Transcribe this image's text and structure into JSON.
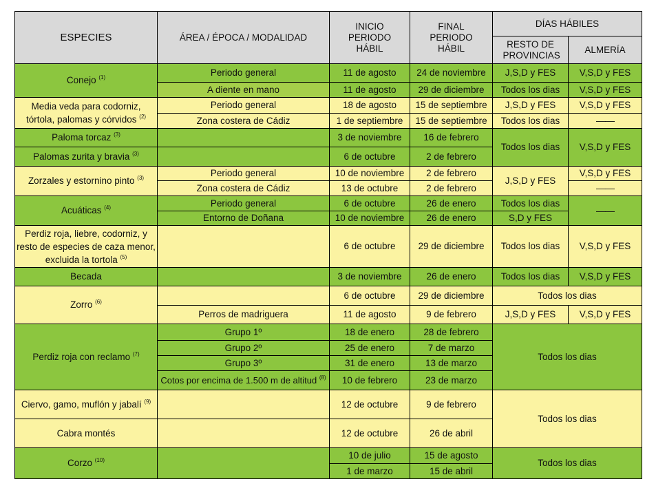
{
  "header": {
    "especies": "ESPECIES",
    "area": "ÁREA / ÉPOCA / MODALIDAD",
    "inicio": "INICIO PERIODO HÁBIL",
    "final": "FINAL PERIODO HÁBIL",
    "dias_habiles": "DÍAS HÁBILES",
    "resto": "RESTO DE PROVINCIAS",
    "almeria": "ALMERÍA"
  },
  "rows": {
    "conejo": {
      "species": "Conejo",
      "note": "(1)",
      "a": {
        "area": "Periodo general",
        "start": "11 de agosto",
        "end": "24 de noviembre",
        "resto": "J,S,D y FES",
        "almeria": "V,S,D y FES"
      },
      "b": {
        "area": "A diente en mano",
        "start": "11 de agosto",
        "end": "29 de diciembre",
        "resto": "Todos los dias",
        "almeria": "V,S,D y FES"
      }
    },
    "mediaveda": {
      "species": "Media veda para codorniz, tórtola, palomas y córvidos",
      "note": "(2)",
      "a": {
        "area": "Periodo general",
        "start": "18 de agosto",
        "end": "15 de septiembre",
        "resto": "J,S,D y FES",
        "almeria": "V,S,D y FES"
      },
      "b": {
        "area": "Zona costera de Cádiz",
        "start": "1 de septiembre",
        "end": "15 de septiembre",
        "resto": "Todos los dias",
        "almeria": "——"
      }
    },
    "torcaz": {
      "species": "Paloma torcaz",
      "note": "(3)",
      "start": "3 de noviembre",
      "end": "16 de febrero"
    },
    "zurita": {
      "species": "Palomas zurita y bravia",
      "note": "(3)",
      "start": "6 de octubre",
      "end": "2 de febrero"
    },
    "palomas_dias": {
      "resto": "Todos los dias",
      "almeria": "V,S,D y FES"
    },
    "zorzales": {
      "species": "Zorzales y estornino pinto",
      "note": "(3)",
      "resto": "J,S,D y FES",
      "a": {
        "area": "Periodo general",
        "start": "10 de noviembre",
        "end": "2 de febrero",
        "almeria": "V,S,D y FES"
      },
      "b": {
        "area": "Zona costera de Cádiz",
        "start": "13 de octubre",
        "end": "2 de febrero",
        "almeria": "——"
      }
    },
    "acuaticas": {
      "species": "Acuáticas",
      "note": "(4)",
      "almeria": "——",
      "a": {
        "area": "Periodo general",
        "start": "6 de octubre",
        "end": "26 de enero",
        "resto": "Todos los dias"
      },
      "b": {
        "area": "Entorno de Doñana",
        "start": "10 de noviembre",
        "end": "26 de enero",
        "resto": "S,D y FES"
      }
    },
    "perdiz": {
      "species": "Perdiz roja, liebre, codorniz, y resto de especies de caza menor, excluida la tortola",
      "note": "(5)",
      "start": "6 de octubre",
      "end": "29 de diciembre",
      "resto": "Todos los dias",
      "almeria": "V,S,D y FES"
    },
    "becada": {
      "species": "Becada",
      "start": "3 de noviembre",
      "end": "26 de enero",
      "resto": "Todos los dias",
      "almeria": "V,S,D y FES"
    },
    "zorro": {
      "species": "Zorro",
      "note": "(6)",
      "a": {
        "start": "6 de octubre",
        "end": "29 de diciembre",
        "dias": "Todos los dias"
      },
      "b": {
        "area": "Perros de madriguera",
        "start": "11 de agosto",
        "end": "9 de febrero",
        "resto": "J,S,D y FES",
        "almeria": "V,S,D y FES"
      }
    },
    "reclamo": {
      "species": "Perdiz roja con reclamo",
      "note": "(7)",
      "dias": "Todos los dias",
      "g1": {
        "area": "Grupo 1º",
        "start": "18 de enero",
        "end": "28 de febrero"
      },
      "g2": {
        "area": "Grupo 2º",
        "start": "25 de enero",
        "end": "7 de marzo"
      },
      "g3": {
        "area": "Grupo 3º",
        "start": "31 de enero",
        "end": "13 de marzo"
      },
      "g4": {
        "area": "Cotos por encima de 1.500 m de altitud",
        "note": "(8)",
        "start": "10 de febrero",
        "end": "23 de marzo"
      }
    },
    "ciervo": {
      "species": "Ciervo, gamo, muflón y jabalí",
      "note": "(9)",
      "start": "12 de octubre",
      "end": "9 de febrero"
    },
    "cabra": {
      "species": "Cabra montés",
      "start": "12 de octubre",
      "end": "26 de abril"
    },
    "mayor_dias": "Todos los dias",
    "corzo": {
      "species": "Corzo",
      "note": "(10)",
      "dias": "Todos los dias",
      "a": {
        "start": "10 de julio",
        "end": "15 de agosto"
      },
      "b": {
        "start": "1 de marzo",
        "end": "15 de abril"
      }
    }
  },
  "colors": {
    "green": "#8cc63f",
    "lime": "#a5cf4a",
    "yellow": "#fbf3a2",
    "header": "#d9d9d9"
  }
}
